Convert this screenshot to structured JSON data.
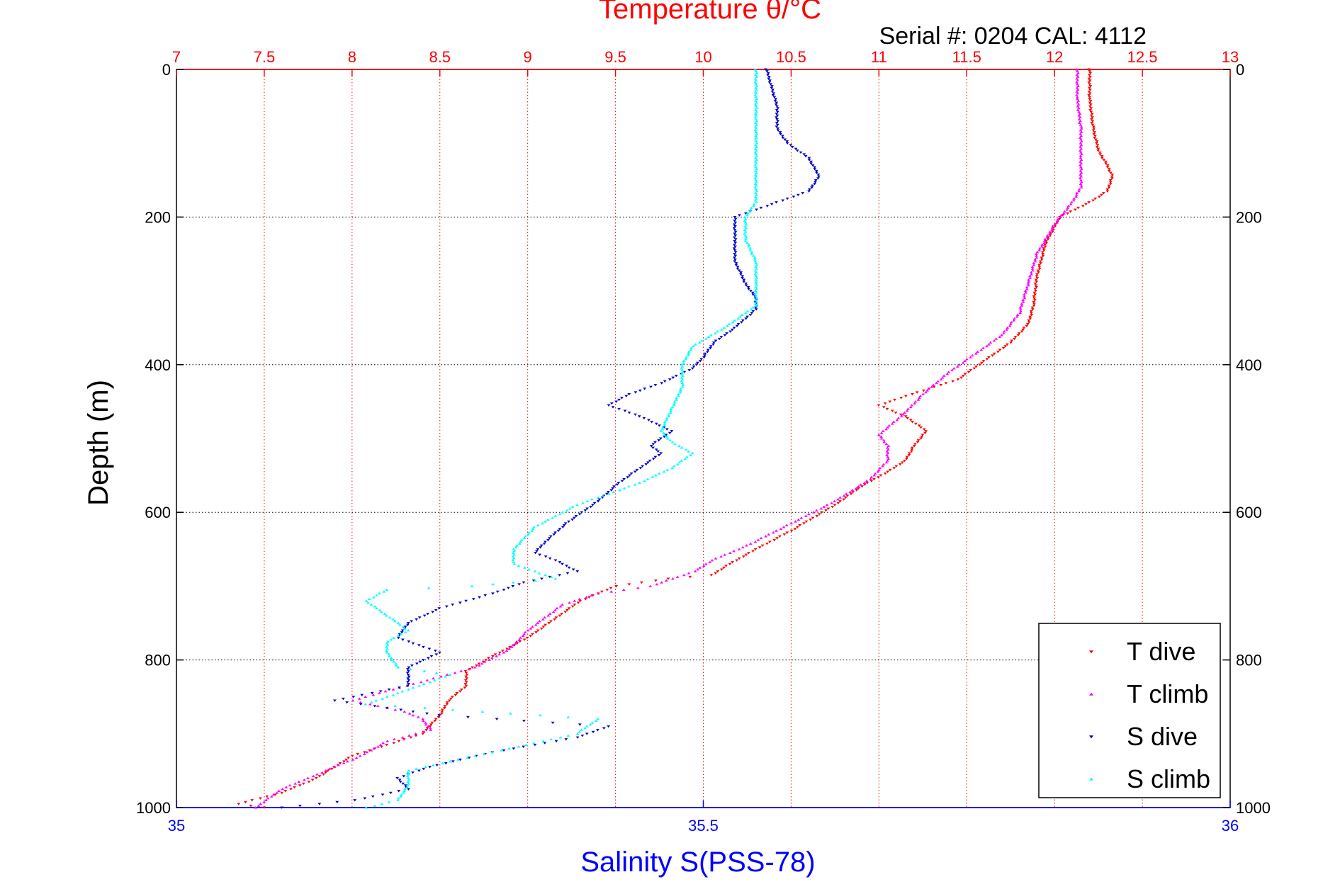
{
  "chart_data": {
    "type": "scatter",
    "title": "Temperature θ/°C",
    "annotation": "Serial #: 0204  CAL: 4112",
    "xlabel_bottom": "Salinity S(PSS-78)",
    "ylabel": "Depth (m)",
    "x_top_ticks": [
      "7",
      "7.5",
      "8",
      "8.5",
      "9",
      "9.5",
      "10",
      "10.5",
      "11",
      "11.5",
      "12",
      "12.5",
      "13"
    ],
    "x_bottom_ticks": [
      "35",
      "35.5",
      "36"
    ],
    "y_ticks": [
      "0",
      "200",
      "400",
      "600",
      "800",
      "1000"
    ],
    "x_top_range": [
      7,
      13
    ],
    "x_bottom_range": [
      35,
      36
    ],
    "y_range": [
      0,
      1000
    ],
    "y_reversed": true,
    "grid": true,
    "legend_position": "bottom-right",
    "colors": {
      "axis_top": "#ff0000",
      "axis_bottom": "#0000ff",
      "grid": "#000000"
    },
    "series": [
      {
        "name": "T dive",
        "axis": "top",
        "color": "#ff0000",
        "marker": "down-triangle",
        "points": [
          [
            12.2,
            0
          ],
          [
            12.2,
            40
          ],
          [
            12.22,
            80
          ],
          [
            12.25,
            110
          ],
          [
            12.3,
            130
          ],
          [
            12.33,
            145
          ],
          [
            12.3,
            165
          ],
          [
            12.2,
            180
          ],
          [
            12.03,
            200
          ],
          [
            11.95,
            235
          ],
          [
            11.9,
            280
          ],
          [
            11.88,
            320
          ],
          [
            11.85,
            345
          ],
          [
            11.75,
            370
          ],
          [
            11.6,
            395
          ],
          [
            11.45,
            420
          ],
          [
            11.25,
            435
          ],
          [
            11.0,
            455
          ],
          [
            11.15,
            470
          ],
          [
            11.27,
            490
          ],
          [
            11.2,
            510
          ],
          [
            11.15,
            530
          ],
          [
            11.05,
            545
          ],
          [
            10.9,
            565
          ],
          [
            10.75,
            590
          ],
          [
            10.5,
            625
          ],
          [
            10.3,
            650
          ],
          [
            10.15,
            670
          ],
          [
            10.05,
            685
          ],
          [
            9.8,
            690
          ],
          [
            9.5,
            700
          ],
          [
            9.3,
            720
          ],
          [
            9.15,
            745
          ],
          [
            9.0,
            770
          ],
          [
            8.8,
            795
          ],
          [
            8.65,
            815
          ],
          [
            8.65,
            835
          ],
          [
            8.55,
            855
          ],
          [
            8.5,
            875
          ],
          [
            8.4,
            900
          ],
          [
            8.2,
            915
          ],
          [
            8.0,
            930
          ],
          [
            7.8,
            960
          ],
          [
            7.6,
            980
          ],
          [
            7.35,
            995
          ],
          [
            7.5,
            1000
          ]
        ]
      },
      {
        "name": "T climb",
        "axis": "top",
        "color": "#ff00ff",
        "marker": "up-triangle",
        "points": [
          [
            12.13,
            0
          ],
          [
            12.13,
            40
          ],
          [
            12.15,
            80
          ],
          [
            12.15,
            120
          ],
          [
            12.15,
            160
          ],
          [
            12.1,
            180
          ],
          [
            12.0,
            210
          ],
          [
            11.9,
            250
          ],
          [
            11.85,
            290
          ],
          [
            11.8,
            330
          ],
          [
            11.7,
            360
          ],
          [
            11.55,
            385
          ],
          [
            11.4,
            410
          ],
          [
            11.25,
            440
          ],
          [
            11.15,
            465
          ],
          [
            11.0,
            495
          ],
          [
            11.05,
            510
          ],
          [
            11.05,
            530
          ],
          [
            10.95,
            555
          ],
          [
            10.75,
            585
          ],
          [
            10.5,
            615
          ],
          [
            10.25,
            645
          ],
          [
            10.05,
            665
          ],
          [
            9.95,
            680
          ],
          [
            9.7,
            700
          ],
          [
            9.4,
            710
          ],
          [
            9.2,
            725
          ],
          [
            9.0,
            760
          ],
          [
            8.9,
            785
          ],
          [
            8.7,
            810
          ],
          [
            8.0,
            855
          ],
          [
            8.3,
            870
          ],
          [
            8.4,
            880
          ],
          [
            8.45,
            895
          ],
          [
            8.2,
            910
          ],
          [
            8.05,
            930
          ],
          [
            7.8,
            955
          ],
          [
            7.6,
            975
          ],
          [
            7.45,
            1000
          ]
        ]
      },
      {
        "name": "S dive",
        "axis": "bottom",
        "color": "#0000cc",
        "marker": "down-triangle",
        "points": [
          [
            35.56,
            0
          ],
          [
            35.57,
            50
          ],
          [
            35.57,
            80
          ],
          [
            35.58,
            100
          ],
          [
            35.6,
            120
          ],
          [
            35.61,
            145
          ],
          [
            35.6,
            165
          ],
          [
            35.57,
            180
          ],
          [
            35.53,
            200
          ],
          [
            35.53,
            230
          ],
          [
            35.53,
            260
          ],
          [
            35.54,
            290
          ],
          [
            35.55,
            310
          ],
          [
            35.55,
            325
          ],
          [
            35.53,
            350
          ],
          [
            35.51,
            370
          ],
          [
            35.5,
            390
          ],
          [
            35.49,
            405
          ],
          [
            35.46,
            425
          ],
          [
            35.43,
            440
          ],
          [
            35.41,
            455
          ],
          [
            35.44,
            470
          ],
          [
            35.47,
            490
          ],
          [
            35.45,
            510
          ],
          [
            35.46,
            520
          ],
          [
            35.44,
            540
          ],
          [
            35.42,
            560
          ],
          [
            35.4,
            585
          ],
          [
            35.37,
            615
          ],
          [
            35.35,
            640
          ],
          [
            35.34,
            655
          ],
          [
            35.36,
            665
          ],
          [
            35.38,
            680
          ],
          [
            35.33,
            695
          ],
          [
            35.3,
            710
          ],
          [
            35.25,
            730
          ],
          [
            35.22,
            750
          ],
          [
            35.21,
            770
          ],
          [
            35.25,
            790
          ],
          [
            35.22,
            810
          ],
          [
            35.22,
            835
          ],
          [
            35.15,
            855
          ],
          [
            35.25,
            875
          ],
          [
            35.41,
            890
          ],
          [
            35.38,
            905
          ],
          [
            35.3,
            925
          ],
          [
            35.24,
            945
          ],
          [
            35.21,
            960
          ],
          [
            35.22,
            975
          ],
          [
            35.17,
            990
          ],
          [
            35.1,
            1000
          ]
        ]
      },
      {
        "name": "S climb",
        "axis": "bottom",
        "color": "#00ffff",
        "marker": "up-triangle",
        "points": [
          [
            35.55,
            0
          ],
          [
            35.55,
            50
          ],
          [
            35.55,
            100
          ],
          [
            35.55,
            150
          ],
          [
            35.55,
            180
          ],
          [
            35.54,
            200
          ],
          [
            35.54,
            230
          ],
          [
            35.55,
            260
          ],
          [
            35.55,
            290
          ],
          [
            35.55,
            320
          ],
          [
            35.52,
            350
          ],
          [
            35.49,
            375
          ],
          [
            35.48,
            400
          ],
          [
            35.48,
            430
          ],
          [
            35.47,
            460
          ],
          [
            35.46,
            490
          ],
          [
            35.47,
            505
          ],
          [
            35.49,
            520
          ],
          [
            35.47,
            540
          ],
          [
            35.44,
            560
          ],
          [
            35.38,
            590
          ],
          [
            35.34,
            620
          ],
          [
            35.32,
            650
          ],
          [
            35.32,
            670
          ],
          [
            35.36,
            690
          ],
          [
            35.28,
            700
          ],
          [
            35.2,
            705
          ],
          [
            35.18,
            720
          ],
          [
            35.2,
            740
          ],
          [
            35.22,
            760
          ],
          [
            35.2,
            775
          ],
          [
            35.2,
            790
          ],
          [
            35.21,
            810
          ],
          [
            35.26,
            820
          ],
          [
            35.22,
            840
          ],
          [
            35.18,
            860
          ],
          [
            35.4,
            880
          ],
          [
            35.38,
            900
          ],
          [
            35.3,
            925
          ],
          [
            35.22,
            950
          ],
          [
            35.22,
            970
          ],
          [
            35.21,
            990
          ],
          [
            35.18,
            1000
          ]
        ]
      }
    ]
  }
}
